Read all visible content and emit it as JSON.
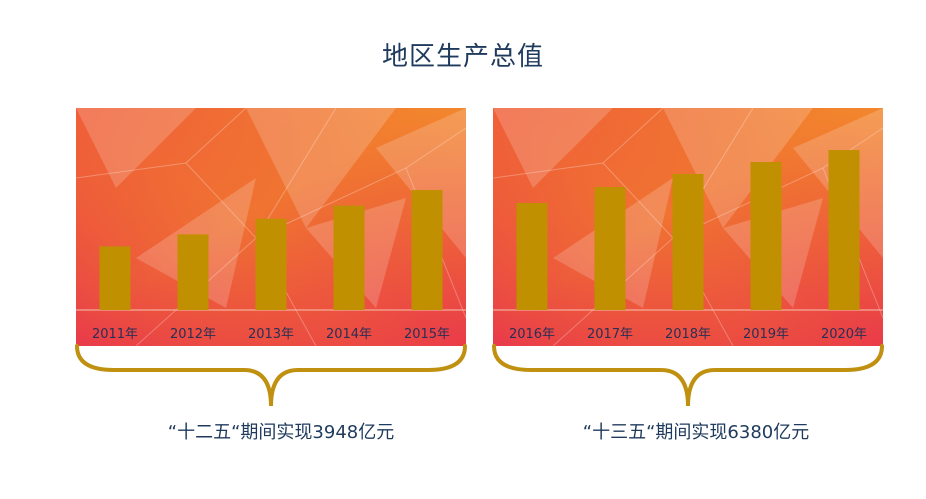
{
  "title": "地区生产总值",
  "colors": {
    "bar": "#c09000",
    "title_text": "#1e3a5c",
    "year_label": "#2a2f55",
    "brace": "#c09010",
    "background_orange": "#f08a2a",
    "background_red": "#e8334e"
  },
  "chart_data": [
    {
      "type": "bar",
      "categories": [
        "2011年",
        "2012年",
        "2013年",
        "2014年",
        "2015年"
      ],
      "values": [
        53,
        63,
        76,
        87,
        100
      ],
      "ylim": [
        0,
        150
      ],
      "caption": "“十二五“期间实现3948亿元"
    },
    {
      "type": "bar",
      "categories": [
        "2016年",
        "2017年",
        "2018年",
        "2019年",
        "2020年"
      ],
      "values": [
        107,
        123,
        136,
        148,
        160
      ],
      "ylim": [
        0,
        180
      ],
      "caption": "“十三五“期间实现6380亿元"
    }
  ]
}
